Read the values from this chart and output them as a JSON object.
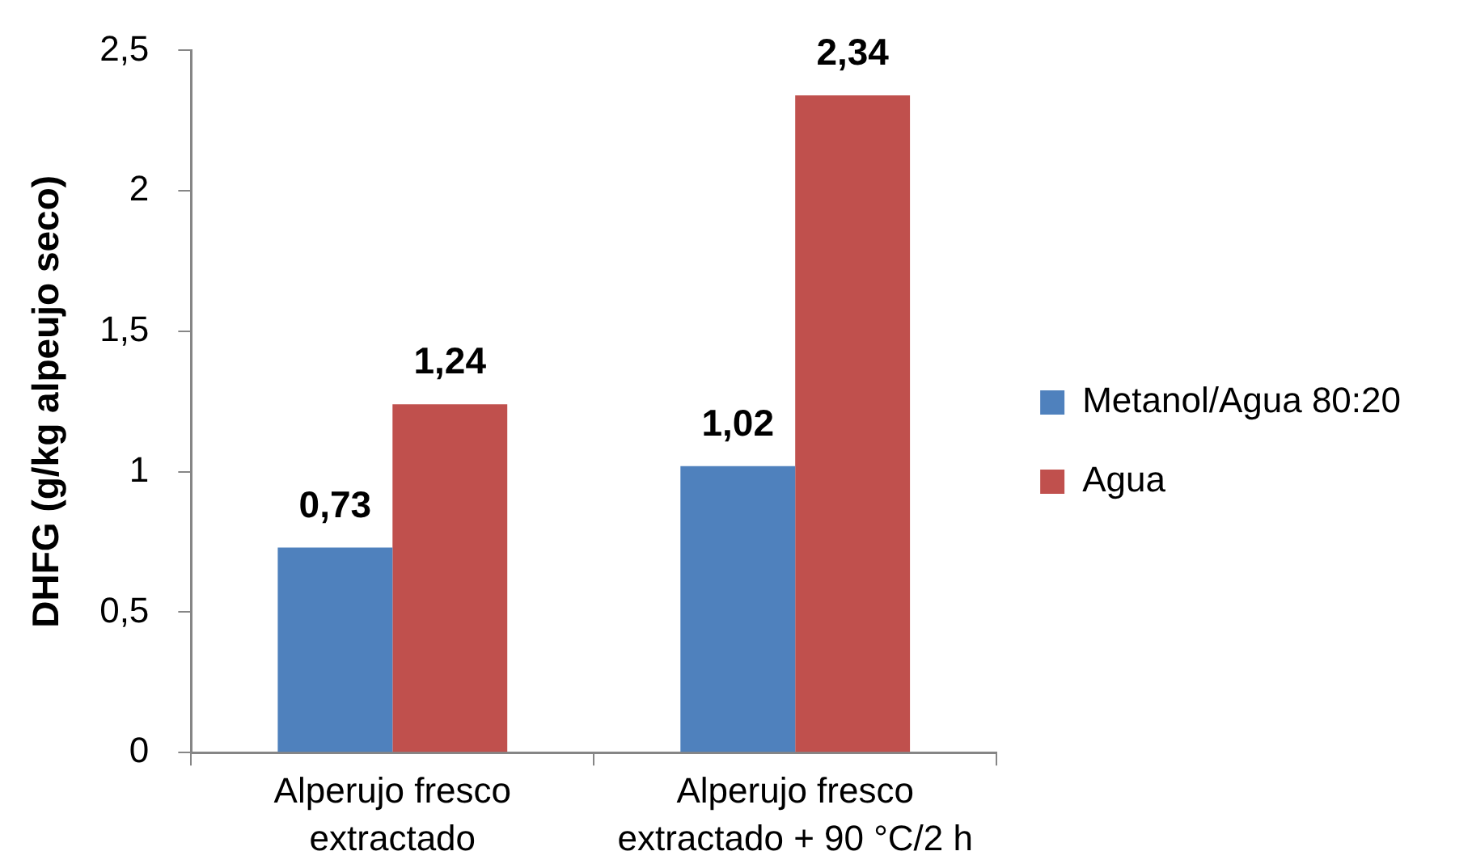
{
  "chart_data": {
    "type": "bar",
    "ylabel": "DHFG (g/kg alpeujo seco)",
    "categories": [
      "Alperujo fresco extractado",
      "Alperujo fresco extractado + 90 °C/2 h"
    ],
    "series": [
      {
        "name": "Metanol/Agua 80:20",
        "color": "#4f81bd",
        "values": [
          0.73,
          1.02
        ],
        "value_labels": [
          "0,73",
          "1,02"
        ]
      },
      {
        "name": "Agua",
        "color": "#c0504d",
        "values": [
          1.24,
          2.34
        ],
        "value_labels": [
          "1,24",
          "2,34"
        ]
      }
    ],
    "ylim": [
      0,
      2.5
    ],
    "yticks": [
      0,
      {
        "value": 0.5,
        "label": "0,5"
      },
      1,
      {
        "value": 1.5,
        "label": "1,5"
      },
      2,
      {
        "value": 2.5,
        "label": "2,5"
      }
    ],
    "legend": "right"
  }
}
